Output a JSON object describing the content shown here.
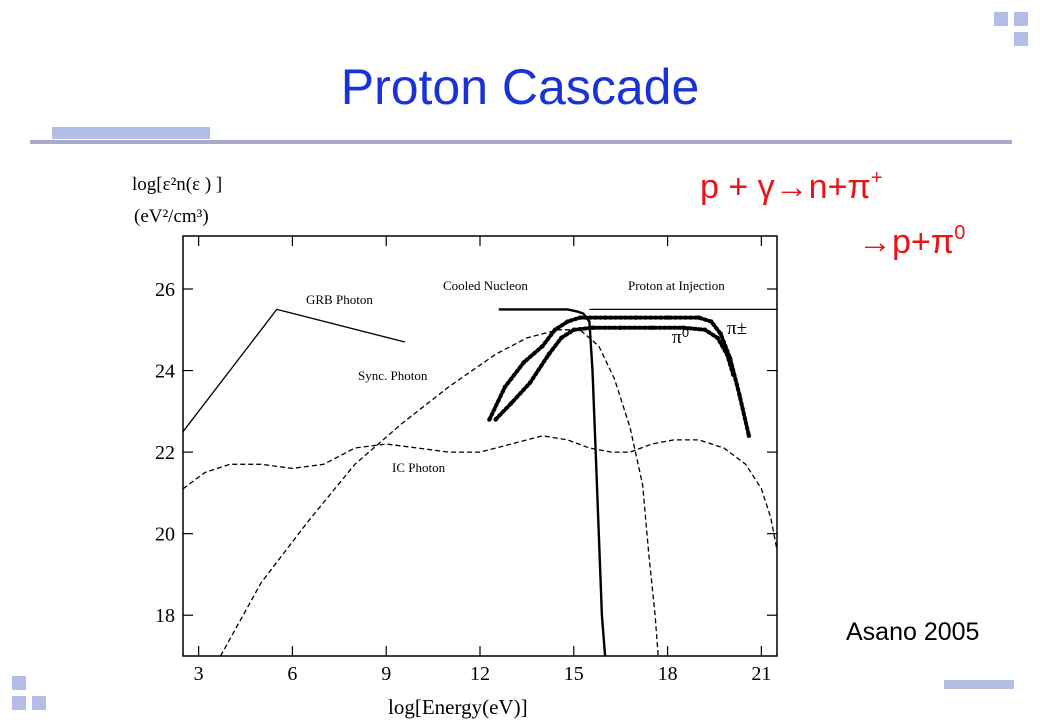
{
  "slide": {
    "title": "Proton Cascade",
    "citation": "Asano 2005",
    "accent_color": "#1a33d9",
    "equation_color": "#e8141a",
    "equation": {
      "line1_a": "p  + γ→n+π",
      "line1_sup": "+",
      "line2_a": "→p+π",
      "line2_sup": "0"
    }
  },
  "chart_data": {
    "type": "line",
    "title": "",
    "ylabel_line1": "log[ε²n(ε ) ]",
    "ylabel_line2": "(eV²/cm³)",
    "xlabel": "log[Energy(eV)]",
    "xlim": [
      2.5,
      21.5
    ],
    "ylim": [
      17,
      27.3
    ],
    "xticks": [
      3,
      6,
      9,
      12,
      15,
      18,
      21
    ],
    "yticks": [
      18,
      20,
      22,
      24,
      26
    ],
    "grid": false,
    "legend": "none",
    "annotations": {
      "grb": "GRB Photon",
      "sync": "Sync. Photon",
      "ic": "IC Photon",
      "cooled": "Cooled Nucleon",
      "injection": "Proton at Injection",
      "pi0": "π⁰",
      "pipm": "π±"
    },
    "series": [
      {
        "name": "GRB Photon",
        "style": "solid",
        "x": [
          2.5,
          5.5,
          9.6
        ],
        "y": [
          22.5,
          25.5,
          24.7
        ]
      },
      {
        "name": "Sync. Photon",
        "style": "dashed",
        "x": [
          3.7,
          5.0,
          6.5,
          8.0,
          9.5,
          11.0,
          12.5,
          13.5,
          14.5,
          15.2,
          15.8,
          16.3,
          16.8,
          17.2,
          17.4,
          17.6,
          17.7
        ],
        "y": [
          17.0,
          18.8,
          20.3,
          21.7,
          22.7,
          23.6,
          24.4,
          24.8,
          25.0,
          25.0,
          24.6,
          23.8,
          22.6,
          21.2,
          19.5,
          18.0,
          17.0
        ]
      },
      {
        "name": "IC Photon",
        "style": "dashed",
        "x": [
          2.5,
          3.2,
          4.0,
          5.0,
          6.0,
          7.0,
          8.0,
          9.0,
          10.0,
          11.0,
          12.0,
          13.0,
          14.0,
          14.8,
          15.5,
          16.2,
          16.8,
          17.5,
          18.2,
          19.0,
          19.8,
          20.5,
          21.0,
          21.3,
          21.5
        ],
        "y": [
          21.1,
          21.5,
          21.7,
          21.7,
          21.6,
          21.7,
          22.1,
          22.2,
          22.1,
          22.0,
          22.0,
          22.2,
          22.4,
          22.3,
          22.1,
          22.0,
          22.0,
          22.2,
          22.3,
          22.3,
          22.1,
          21.7,
          21.1,
          20.4,
          19.6
        ]
      },
      {
        "name": "Cooled Nucleon",
        "style": "solid",
        "x": [
          12.6,
          14.0,
          14.8,
          15.1,
          15.3,
          15.5,
          15.6,
          15.7,
          15.8,
          15.9,
          16.0
        ],
        "y": [
          25.5,
          25.5,
          25.5,
          25.45,
          25.4,
          25.2,
          24.0,
          22.0,
          20.0,
          18.0,
          17.0
        ]
      },
      {
        "name": "Proton at Injection",
        "style": "solid",
        "x": [
          15.5,
          21.5
        ],
        "y": [
          25.5,
          25.5
        ]
      },
      {
        "name": "π±",
        "style": "dotted",
        "x": [
          12.3,
          12.8,
          13.4,
          14.0,
          14.4,
          14.8,
          15.2,
          16.0,
          17.0,
          18.0,
          19.0,
          19.4,
          19.7,
          20.0,
          20.3,
          20.6
        ],
        "y": [
          22.8,
          23.6,
          24.2,
          24.6,
          25.0,
          25.2,
          25.3,
          25.3,
          25.3,
          25.3,
          25.3,
          25.2,
          24.9,
          24.3,
          23.4,
          22.4
        ]
      },
      {
        "name": "π⁰",
        "style": "dotted",
        "x": [
          12.5,
          13.0,
          13.6,
          14.2,
          14.6,
          15.0,
          15.6,
          16.5,
          17.5,
          18.5,
          19.2,
          19.6,
          19.9,
          20.1
        ],
        "y": [
          22.8,
          23.2,
          23.7,
          24.4,
          24.8,
          25.0,
          25.05,
          25.05,
          25.05,
          25.05,
          25.0,
          24.8,
          24.4,
          23.9
        ]
      }
    ]
  }
}
